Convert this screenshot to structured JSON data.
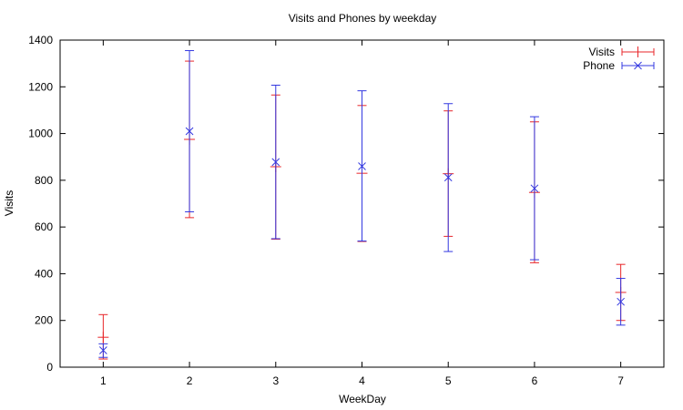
{
  "chart_data": {
    "type": "scatter",
    "title": "Visits and Phones by weekday",
    "xlabel": "WeekDay",
    "ylabel": "Visits",
    "xlim": [
      0.5,
      7.5
    ],
    "ylim": [
      0,
      1400
    ],
    "xticks": [
      1,
      2,
      3,
      4,
      5,
      6,
      7
    ],
    "yticks": [
      0,
      200,
      400,
      600,
      800,
      1000,
      1200,
      1400
    ],
    "grid": false,
    "legend": "top-right",
    "series": [
      {
        "name": "Visits",
        "color": "#e8262a",
        "marker": "plus",
        "points": [
          {
            "x": 1,
            "y": 128,
            "low": 35,
            "high": 225
          },
          {
            "x": 2,
            "y": 975,
            "low": 640,
            "high": 1310
          },
          {
            "x": 3,
            "y": 858,
            "low": 548,
            "high": 1165
          },
          {
            "x": 4,
            "y": 830,
            "low": 538,
            "high": 1120
          },
          {
            "x": 5,
            "y": 828,
            "low": 560,
            "high": 1097
          },
          {
            "x": 6,
            "y": 748,
            "low": 447,
            "high": 1050
          },
          {
            "x": 7,
            "y": 320,
            "low": 200,
            "high": 440
          }
        ]
      },
      {
        "name": "Phone",
        "color": "#3338e0",
        "marker": "cross",
        "points": [
          {
            "x": 1,
            "y": 72,
            "low": 42,
            "high": 100
          },
          {
            "x": 2,
            "y": 1010,
            "low": 665,
            "high": 1355
          },
          {
            "x": 3,
            "y": 878,
            "low": 550,
            "high": 1207
          },
          {
            "x": 4,
            "y": 860,
            "low": 540,
            "high": 1183
          },
          {
            "x": 5,
            "y": 812,
            "low": 495,
            "high": 1128
          },
          {
            "x": 6,
            "y": 765,
            "low": 460,
            "high": 1072
          },
          {
            "x": 7,
            "y": 280,
            "low": 180,
            "high": 380
          }
        ]
      }
    ]
  }
}
